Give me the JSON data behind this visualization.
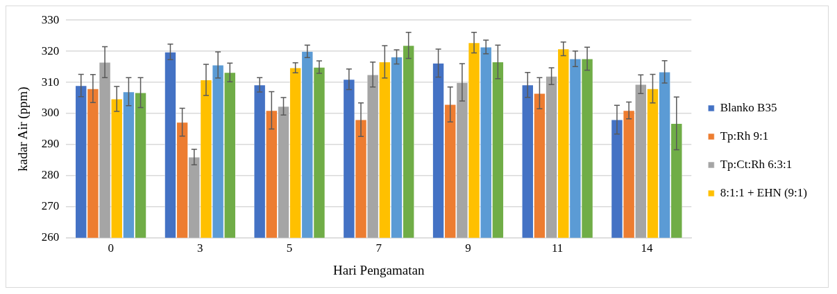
{
  "chart_data": {
    "type": "bar",
    "xlabel": "Hari Pengamatan",
    "ylabel": "kadar Air (ppm)",
    "categories": [
      "0",
      "3",
      "5",
      "7",
      "9",
      "11",
      "14"
    ],
    "ylim": [
      260,
      330
    ],
    "yticks": [
      260,
      270,
      280,
      290,
      300,
      310,
      320,
      330
    ],
    "grid": "y",
    "legend": "right",
    "series": [
      {
        "name": "Blanko B35",
        "color": "#4472c4",
        "values": [
          309,
          319.8,
          309.2,
          311,
          316.2,
          309.2,
          298
        ],
        "errors": [
          3.6,
          2.5,
          2.3,
          3.3,
          4.5,
          4,
          4.6
        ]
      },
      {
        "name": "Tp:Rh 9:1",
        "color": "#ed7d31",
        "values": [
          308,
          297.2,
          301,
          298,
          302.9,
          306.5,
          301
        ],
        "errors": [
          4.5,
          4.5,
          6,
          5.4,
          5.6,
          5,
          2.7
        ]
      },
      {
        "name": "Tp:Ct:Rh 6:3:1",
        "color": "#a5a5a5",
        "values": [
          316.5,
          286,
          302.3,
          312.5,
          310,
          312,
          309.4
        ],
        "errors": [
          5,
          2.5,
          2.8,
          4,
          6,
          2.7,
          3
        ]
      },
      {
        "name": "8:1:1 + EHN (9:1)",
        "color": "#ffc000",
        "values": [
          304.7,
          310.8,
          314.7,
          316.6,
          322.8,
          320.8,
          308
        ],
        "errors": [
          4,
          5,
          1.6,
          5.2,
          3.3,
          2.2,
          4.6
        ]
      },
      {
        "color": "#5b9bd5",
        "values": [
          307,
          315.6,
          320,
          318.2,
          321.4,
          317.6,
          313.4
        ],
        "errors": [
          4.5,
          4.2,
          2,
          2.3,
          2.2,
          2.5,
          3.6
        ]
      },
      {
        "color": "#70ad47",
        "values": [
          306.7,
          313.2,
          314.9,
          321.9,
          316.6,
          317.6,
          296.8
        ],
        "errors": [
          4.8,
          3,
          2,
          4.2,
          5.4,
          3.7,
          8.5
        ]
      }
    ]
  }
}
